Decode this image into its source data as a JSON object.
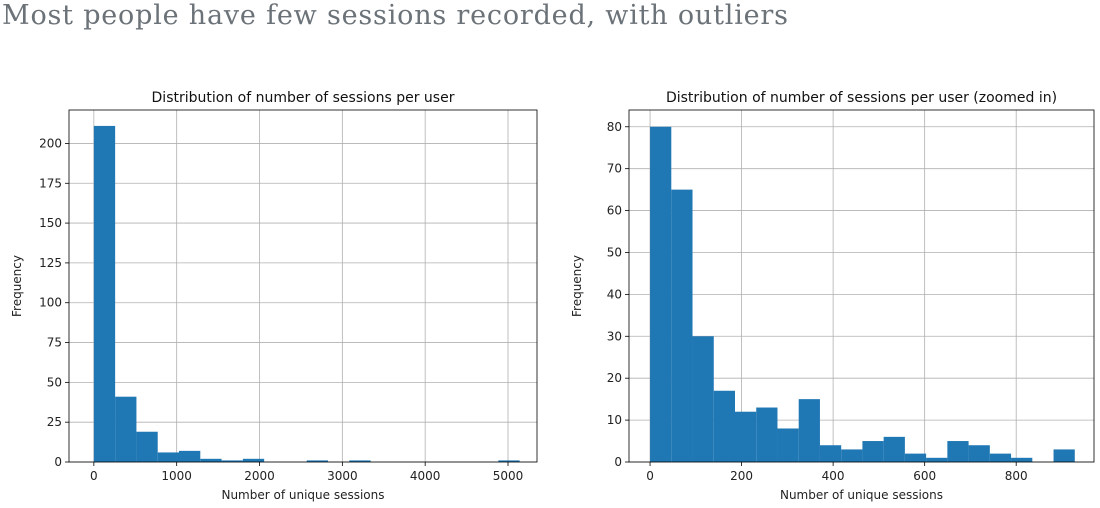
{
  "heading": "Most people have few sessions recorded, with outliers",
  "chart_data": [
    {
      "type": "bar",
      "title": "Distribution of number of sessions per user",
      "xlabel": "Number of unique sessions",
      "ylabel": "Frequency",
      "xlim": [
        -300,
        5350
      ],
      "ylim": [
        0,
        221
      ],
      "xticks": [
        0,
        1000,
        2000,
        3000,
        4000,
        5000
      ],
      "yticks": [
        0,
        25,
        50,
        75,
        100,
        125,
        150,
        175,
        200
      ],
      "grid": true,
      "color": "#1f77b4",
      "bin_edges": [
        0,
        257,
        514,
        771,
        1028,
        1285,
        1542,
        1799,
        2056,
        2313,
        2570,
        2827,
        3084,
        3341,
        3598,
        3855,
        4112,
        4369,
        4626,
        4883,
        5140
      ],
      "values": [
        211,
        41,
        19,
        6,
        7,
        2,
        1,
        2,
        0,
        0,
        1,
        0,
        1,
        0,
        0,
        0,
        0,
        0,
        0,
        1
      ]
    },
    {
      "type": "bar",
      "title": "Distribution of number of sessions per user (zoomed in)",
      "xlabel": "Number of unique sessions",
      "ylabel": "Frequency",
      "xlim": [
        -46,
        970
      ],
      "ylim": [
        0,
        84
      ],
      "xticks": [
        0,
        200,
        400,
        600,
        800
      ],
      "yticks": [
        0,
        10,
        20,
        30,
        40,
        50,
        60,
        70,
        80
      ],
      "grid": true,
      "color": "#1f77b4",
      "bin_edges": [
        0,
        46.4,
        92.8,
        139.2,
        185.6,
        232,
        278.4,
        324.8,
        371.2,
        417.6,
        464,
        510.4,
        556.8,
        603.2,
        649.6,
        696,
        742.4,
        788.8,
        835.2,
        881.6,
        928
      ],
      "values": [
        80,
        65,
        30,
        17,
        12,
        13,
        8,
        15,
        4,
        3,
        5,
        6,
        2,
        1,
        5,
        4,
        2,
        1,
        0,
        3
      ]
    }
  ]
}
